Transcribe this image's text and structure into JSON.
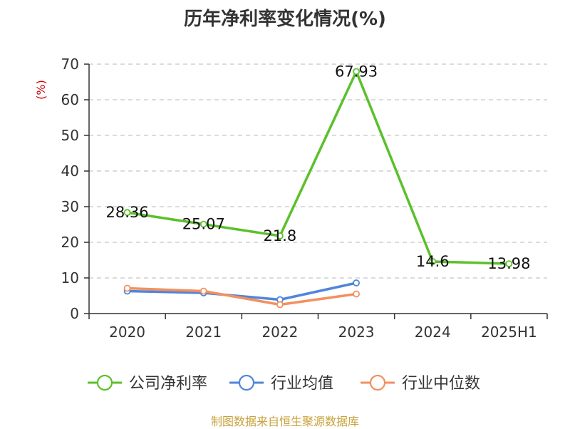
{
  "chart_data": {
    "type": "line",
    "title": "历年净利率变化情况(%)",
    "ylabel": "(%)",
    "xlabel": "",
    "categories": [
      "2020",
      "2021",
      "2022",
      "2023",
      "2024",
      "2025H1"
    ],
    "ylim": [
      0,
      70
    ],
    "yticks": [
      0,
      10,
      20,
      30,
      40,
      50,
      60,
      70
    ],
    "grid": true,
    "legend_position": "bottom",
    "series": [
      {
        "name": "公司净利率",
        "color": "#5cc02a",
        "values": [
          28.36,
          25.07,
          21.8,
          67.93,
          14.6,
          13.98
        ],
        "labels": true
      },
      {
        "name": "行业均值",
        "color": "#4f86d9",
        "values": [
          6.3,
          5.8,
          3.9,
          8.6,
          null,
          null
        ],
        "labels": false
      },
      {
        "name": "行业中位数",
        "color": "#f39060",
        "values": [
          7.1,
          6.3,
          2.5,
          5.5,
          null,
          null
        ],
        "labels": false
      }
    ]
  },
  "footer": {
    "source": "制图数据来自恒生聚源数据库"
  }
}
